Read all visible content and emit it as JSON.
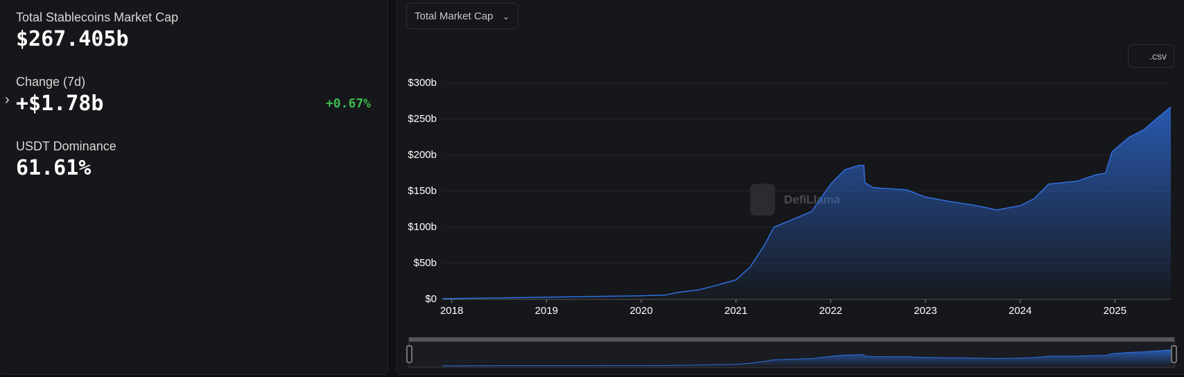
{
  "stats": {
    "market_cap_label": "Total Stablecoins Market Cap",
    "market_cap_value": "$267.405b",
    "change_label": "Change (7d)",
    "change_value": "+$1.78b",
    "change_percent": "+0.67%",
    "dominance_label": "USDT Dominance",
    "dominance_value": "61.61%"
  },
  "controls": {
    "dropdown": "Total Market Cap",
    "csv_button": ".csv"
  },
  "watermark": "DefiLlama",
  "chart_data": {
    "type": "area",
    "x": [
      2017.9,
      2018.5,
      2019.0,
      2019.5,
      2020.0,
      2020.25,
      2020.4,
      2020.6,
      2020.75,
      2021.0,
      2021.15,
      2021.3,
      2021.4,
      2021.6,
      2021.8,
      2022.0,
      2022.15,
      2022.3,
      2022.35,
      2022.36,
      2022.45,
      2022.8,
      2023.0,
      2023.25,
      2023.5,
      2023.65,
      2023.75,
      2024.0,
      2024.15,
      2024.3,
      2024.6,
      2024.8,
      2024.9,
      2024.97,
      2025.15,
      2025.3,
      2025.45,
      2025.59
    ],
    "values": [
      1,
      2,
      3,
      4,
      5,
      6,
      10,
      13,
      18,
      27,
      45,
      75,
      100,
      111,
      122,
      160,
      180,
      186,
      186,
      162,
      155,
      152,
      142,
      136,
      131,
      127,
      124,
      130,
      140,
      160,
      164,
      173,
      175,
      205,
      225,
      235,
      252,
      267
    ],
    "color": "#2f6fe0",
    "xlim": [
      2017.9,
      2025.59
    ],
    "xticks": [
      2018,
      2019,
      2020,
      2021,
      2022,
      2023,
      2024,
      2025
    ],
    "ylim": [
      0,
      300
    ],
    "yticks": [
      {
        "value": 0,
        "label": "$0"
      },
      {
        "value": 50,
        "label": "$50b"
      },
      {
        "value": 100,
        "label": "$100b"
      },
      {
        "value": 150,
        "label": "$150b"
      },
      {
        "value": 200,
        "label": "$200b"
      },
      {
        "value": 250,
        "label": "$250b"
      },
      {
        "value": 300,
        "label": "$300b"
      }
    ],
    "grid": true
  }
}
